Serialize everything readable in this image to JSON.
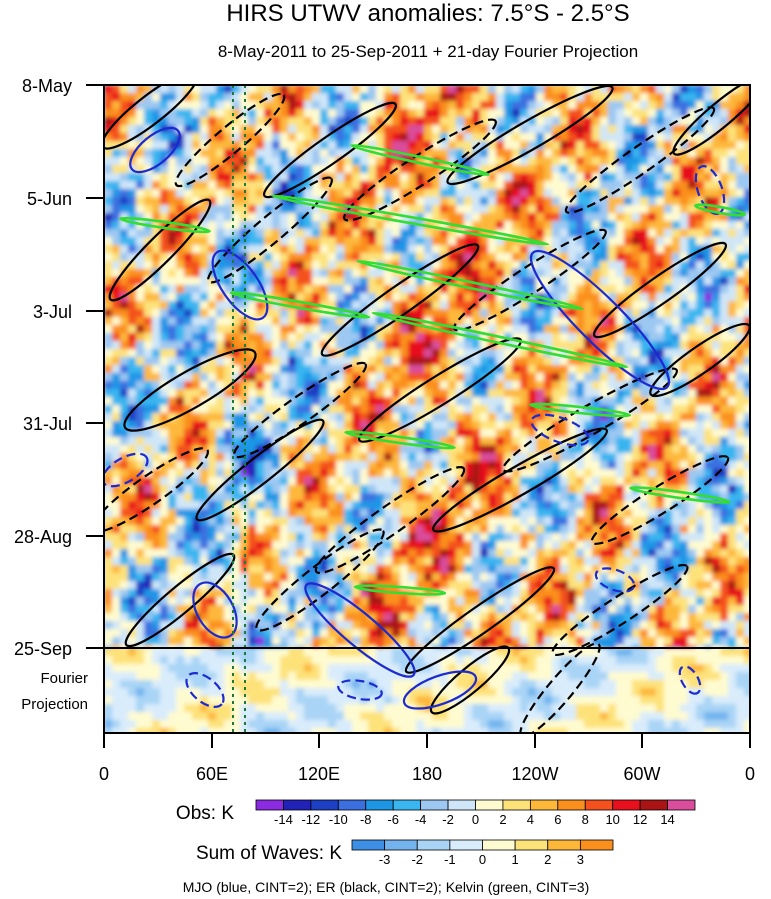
{
  "chart_data": {
    "type": "heatmap",
    "title": "HIRS UTWV anomalies: 7.5°S - 2.5°S",
    "subtitle": "8-May-2011 to 25-Sep-2011 + 21-day Fourier Projection",
    "y_ticks": [
      "8-May",
      "5-Jun",
      "3-Jul",
      "31-Jul",
      "28-Aug",
      "25-Sep"
    ],
    "y_extra_label": [
      "Fourier",
      "Projection"
    ],
    "x_ticks": [
      "0",
      "60E",
      "120E",
      "180",
      "120W",
      "60W",
      "0"
    ],
    "x_range_deg_east": [
      0,
      360
    ],
    "time_range_days": [
      0,
      140
    ],
    "observation_end": "25-Sep",
    "projection_days": 21,
    "obs_colorbar": {
      "label": "Obs: K",
      "levels": [
        "-14",
        "-12",
        "-10",
        "-8",
        "-6",
        "-4",
        "-2",
        "0",
        "2",
        "4",
        "6",
        "8",
        "10",
        "12",
        "14"
      ],
      "colors": [
        "#8a2be2",
        "#2222b8",
        "#1c3fc4",
        "#3b6fe0",
        "#1e96e6",
        "#39b5f0",
        "#9cc8f2",
        "#cfe6f8",
        "#fffbd0",
        "#fde27a",
        "#fdb83a",
        "#fb8f1e",
        "#f4511e",
        "#e8101c",
        "#aa1414",
        "#d94d9c"
      ]
    },
    "waves_colorbar": {
      "label": "Sum of Waves: K",
      "levels": [
        "-3",
        "-2",
        "-1",
        "0",
        "1",
        "2",
        "3"
      ],
      "colors": [
        "#3d8fe6",
        "#73b4ef",
        "#a9d4f6",
        "#d9ecfb",
        "#fffbd0",
        "#fde27a",
        "#fdb83a",
        "#fb8f1e"
      ]
    },
    "wave_contours": [
      {
        "name": "MJO",
        "color": "blue",
        "cint": 2
      },
      {
        "name": "ER",
        "color": "black",
        "cint": 2
      },
      {
        "name": "Kelvin",
        "color": "green",
        "cint": 3
      }
    ],
    "caption": "MJO (blue, CINT=2); ER (black, CINT=2); Kelvin (green, CINT=3)"
  }
}
